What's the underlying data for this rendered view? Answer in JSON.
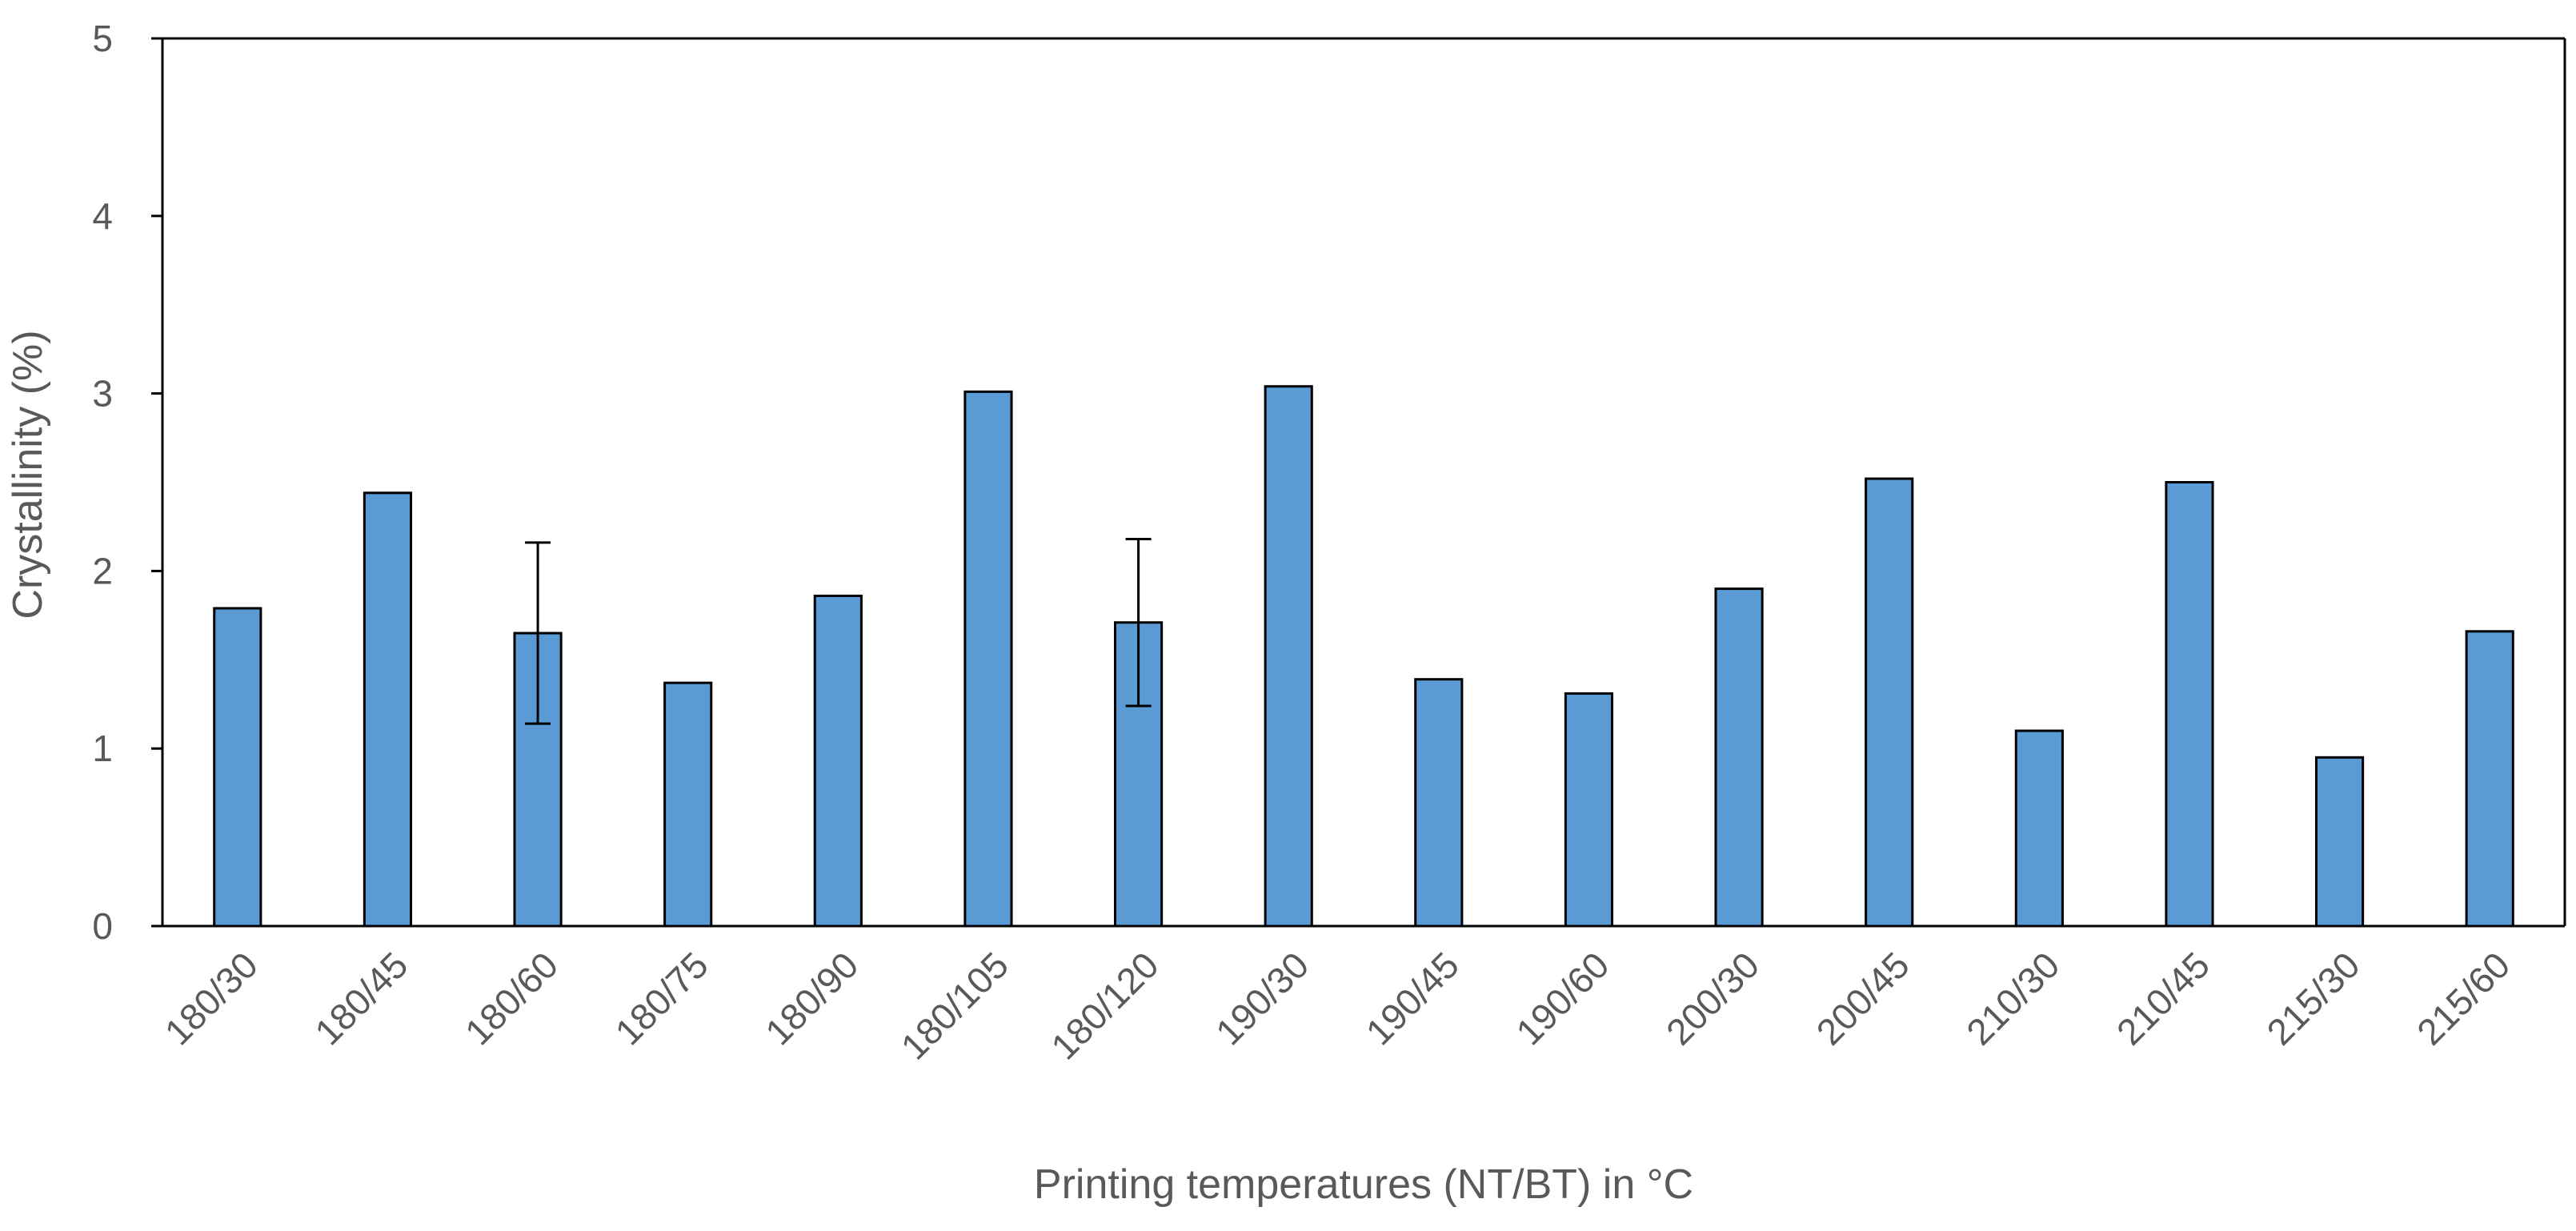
{
  "chart_data": {
    "type": "bar",
    "title": "",
    "xlabel": "Printing temperatures (NT/BT) in °C",
    "ylabel": "Crystallinity (%)",
    "ylim": [
      0,
      5
    ],
    "yticks": [
      "0",
      "1",
      "2",
      "3",
      "4",
      "5"
    ],
    "categories": [
      "180/30",
      "180/45",
      "180/60",
      "180/75",
      "180/90",
      "180/105",
      "180/120",
      "190/30",
      "190/45",
      "190/60",
      "200/30",
      "200/45",
      "210/30",
      "210/45",
      "215/30",
      "215/60"
    ],
    "values": [
      1.79,
      2.44,
      1.65,
      1.37,
      1.86,
      3.01,
      1.71,
      3.04,
      1.39,
      1.31,
      1.9,
      2.52,
      1.1,
      2.5,
      0.95,
      1.66
    ],
    "error_bars": [
      null,
      null,
      0.51,
      null,
      null,
      null,
      0.47,
      null,
      null,
      null,
      null,
      null,
      null,
      null,
      null,
      null
    ],
    "grid": false,
    "legend": "none",
    "colors": {
      "bar_fill": "#5b9bd5",
      "bar_stroke": "#000000",
      "axis": "#000000",
      "text": "#595959"
    }
  }
}
